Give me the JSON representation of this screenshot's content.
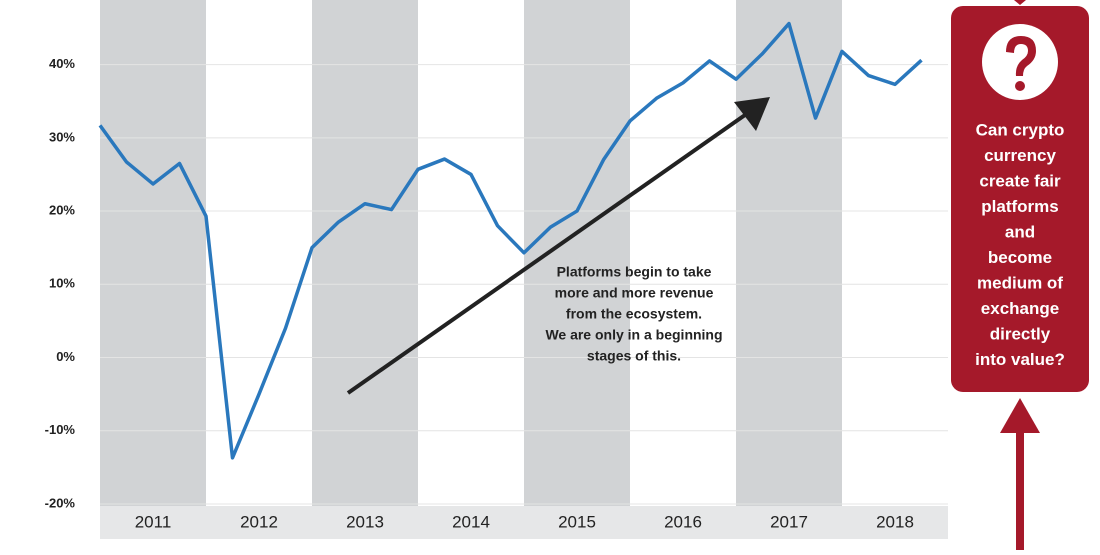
{
  "chart_data": {
    "type": "line",
    "categories": [
      "2011",
      "2012",
      "2013",
      "2014",
      "2015",
      "2016",
      "2017",
      "2018"
    ],
    "x": [
      2011,
      2011.25,
      2011.5,
      2011.75,
      2012,
      2012.25,
      2012.5,
      2012.75,
      2013,
      2013.25,
      2013.5,
      2013.75,
      2014,
      2014.25,
      2014.5,
      2014.75,
      2015,
      2015.25,
      2015.5,
      2015.75,
      2016,
      2016.25,
      2016.5,
      2016.75,
      2017,
      2017.25,
      2017.5,
      2017.75,
      2018,
      2018.25,
      2018.5,
      2018.75
    ],
    "xlim": [
      2011,
      2019
    ],
    "series": [
      {
        "color": "#2a78bd",
        "values": [
          31.7,
          26.7,
          23.7,
          26.5,
          19.3,
          -13.7,
          -5,
          4,
          15,
          18.5,
          21,
          20.2,
          25.7,
          27.1,
          25,
          18,
          14.3,
          17.8,
          20,
          27,
          32.3,
          35.4,
          37.5,
          40.5,
          38,
          41.5,
          45.6,
          32.7,
          41.8,
          38.5,
          37.3,
          40.6
        ]
      }
    ],
    "ylim": [
      -20,
      48
    ],
    "yticks": [
      {
        "value": -20,
        "label": "-20%"
      },
      {
        "value": -10,
        "label": "-10%"
      },
      {
        "value": 0,
        "label": "0%"
      },
      {
        "value": 10,
        "label": "10%"
      },
      {
        "value": 20,
        "label": "20%"
      },
      {
        "value": 30,
        "label": "30%"
      },
      {
        "value": 40,
        "label": "40%"
      }
    ],
    "shade_color": "#d1d3d5",
    "grid": true,
    "annotation": [
      "Platforms begin to take",
      "more and more revenue",
      "from the ecosystem.",
      "We are only in a beginning",
      "stages of this."
    ],
    "callout": [
      "Can crypto",
      "currency",
      "create fair",
      "platforms",
      "and",
      "become",
      "medium of",
      "exchange",
      "directly",
      "into value?"
    ]
  }
}
